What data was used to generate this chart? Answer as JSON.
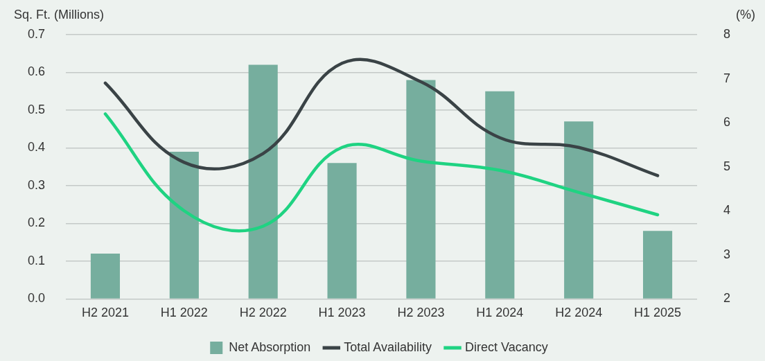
{
  "chart_data": {
    "type": "bar",
    "ylabel": "Sq. Ft. (Millions)",
    "y2label": "(%)",
    "categories": [
      "H2 2021",
      "H1 2022",
      "H2 2022",
      "H1 2023",
      "H2 2023",
      "H1 2024",
      "H2 2024",
      "H1 2025"
    ],
    "series": [
      {
        "name": "Net Absorption",
        "color": "#76ae9e",
        "values": [
          0.12,
          0.39,
          0.62,
          0.36,
          0.58,
          0.55,
          0.47,
          0.18
        ]
      },
      {
        "name": "Total Availability",
        "type": "line",
        "axis": "y2",
        "color": "#3a4346",
        "values": [
          6.9,
          5.1,
          5.3,
          7.35,
          6.93,
          5.66,
          5.44,
          4.8
        ]
      },
      {
        "name": "Direct Vacancy",
        "type": "line",
        "axis": "y2",
        "color": "#1fd382",
        "values": [
          6.2,
          4.0,
          3.65,
          5.44,
          5.13,
          4.92,
          4.42,
          3.91
        ]
      }
    ],
    "ylim": [
      0,
      0.7
    ],
    "yticks": [
      {
        "value": 0,
        "label": "0.0"
      },
      0.1,
      0.2,
      0.3,
      0.4,
      0.5,
      0.6,
      0.7
    ],
    "y2lim": [
      2,
      8
    ],
    "y2ticks": [
      2,
      3,
      4,
      5,
      6,
      7,
      8
    ],
    "grid": "y",
    "legend": "bottom",
    "marker": "none"
  }
}
